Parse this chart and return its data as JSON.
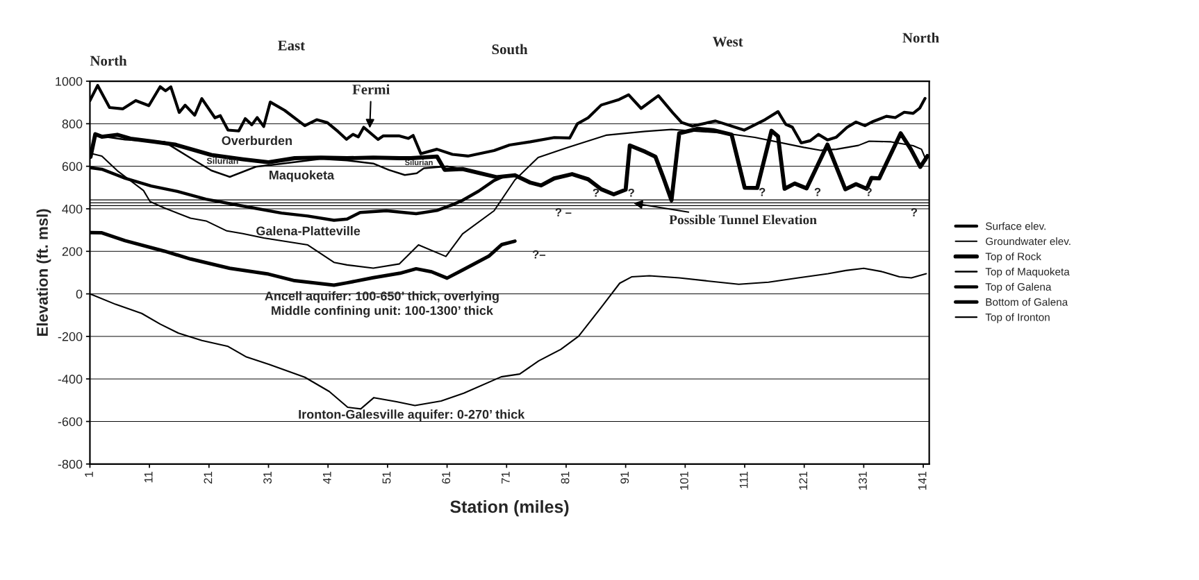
{
  "chart_data": {
    "type": "line",
    "xlabel": "Station (miles)",
    "ylabel": "Elevation (ft. msl)",
    "xlim": [
      1,
      142
    ],
    "xticks": [
      1,
      11,
      21,
      31,
      41,
      51,
      61,
      71,
      81,
      91,
      101,
      111,
      121,
      131,
      141
    ],
    "ylim": [
      -800,
      1000
    ],
    "yticks": [
      -800,
      -600,
      -400,
      -200,
      0,
      200,
      400,
      600,
      800,
      1000
    ],
    "grid": "y",
    "legend": "right",
    "line_style": "solid",
    "marker": "none",
    "series": [
      {
        "name": "Surface elev.",
        "color": "#000000",
        "x": [
          1,
          2.3,
          4.3,
          6.5,
          8.7,
          10.9,
          12.8,
          13.7,
          14.6,
          16,
          17,
          18.6,
          19.8,
          22,
          22.9,
          24.2,
          26,
          27.1,
          28.2,
          29.1,
          30.2,
          31.3,
          33.7,
          37.1,
          39.1,
          40.9,
          42.7,
          44.1,
          45.2,
          46.1,
          47,
          49.4,
          50.3,
          52.9,
          54.5,
          55.3,
          56.6,
          59.3,
          61.9,
          64.5,
          68.9,
          71.5,
          75,
          79,
          81.6,
          82.9,
          84.7,
          86.9,
          89.9,
          91.5,
          93.6,
          96.5,
          98.9,
          100.4,
          102.2,
          106.1,
          110.9,
          114.4,
          116.6,
          117.9,
          119,
          120.5,
          122,
          123.4,
          124.9,
          126.4,
          128.2,
          129.7,
          131.2,
          132.6,
          134.8,
          136.3,
          137.8,
          139.3,
          140.4,
          141.3
        ],
        "values": [
          909,
          980,
          876,
          870,
          909,
          885,
          974,
          955,
          973,
          853,
          887,
          840,
          918,
          828,
          838,
          770,
          766,
          824,
          795,
          829,
          787,
          902,
          863,
          791,
          819,
          805,
          763,
          727,
          750,
          738,
          783,
          726,
          743,
          743,
          731,
          745,
          659,
          680,
          656,
          648,
          674,
          700,
          715,
          735,
          733,
          800,
          828,
          888,
          914,
          936,
          872,
          932,
          852,
          806,
          789,
          813,
          770,
          819,
          857,
          797,
          784,
          710,
          720,
          750,
          724,
          737,
          783,
          808,
          791,
          811,
          835,
          829,
          854,
          849,
          873,
          919
        ]
      },
      {
        "name": "Groundwater elev.",
        "color": "#000000",
        "x": [
          1.1,
          3,
          5.6,
          10,
          11.1,
          13.5,
          17.9,
          20.5,
          24,
          26.7,
          30.2,
          37.6,
          42,
          44.2,
          48.6,
          53,
          56.2,
          60.8,
          63.6,
          68.9,
          72.4,
          76.3,
          81.2,
          87.7,
          94.3,
          98.7,
          107.4,
          112.7,
          120.9,
          123.8,
          126.4,
          130.1,
          131.9,
          135.6,
          139.3,
          140.7,
          141.5
        ],
        "values": [
          661,
          648,
          579,
          486,
          434,
          404,
          356,
          343,
          296,
          283,
          263,
          230,
          148,
          136,
          121,
          141,
          230,
          176,
          282,
          391,
          536,
          641,
          688,
          746,
          764,
          773,
          756,
          736,
          689,
          675,
          680,
          698,
          718,
          715,
          697,
          680,
          627
        ]
      },
      {
        "name": "Top of Rock",
        "color": "#000000",
        "x": [
          1.1,
          1.9,
          3,
          5.6,
          7.8,
          11.7,
          15.3,
          21.4,
          26.7,
          31,
          35.4,
          39.8,
          44.2,
          48.6,
          53,
          54.9,
          59.3,
          60.6,
          63.6,
          69.3,
          72.4,
          75,
          76.8,
          79,
          82,
          84.7,
          86.9,
          89,
          91,
          91.7,
          94.3,
          96,
          97.4,
          98.7,
          100,
          103.1,
          105.7,
          108.8,
          111,
          113.1,
          115.5,
          116.6,
          117.7,
          119.4,
          121.4,
          124.9,
          127.9,
          129.7,
          131.5,
          132.3,
          133.6,
          137.2,
          138.9,
          140.5,
          141.7
        ],
        "values": [
          644,
          751,
          739,
          748,
          730,
          716,
          702,
          653,
          633,
          619,
          638,
          641,
          638,
          641,
          638,
          638,
          646,
          583,
          587,
          549,
          558,
          523,
          510,
          543,
          563,
          539,
          492,
          468,
          490,
          698,
          668,
          645,
          542,
          440,
          755,
          776,
          770,
          749,
          499,
          498,
          767,
          741,
          494,
          519,
          496,
          702,
          492,
          516,
          494,
          545,
          543,
          755,
          681,
          597,
          648
        ]
      },
      {
        "name": "Top of Maquoketa",
        "color": "#000000",
        "x": [
          2.1,
          6.9,
          13.5,
          17.9,
          21.4,
          24.5,
          28.9,
          33.2,
          39.8,
          44.2,
          48.6,
          51.2,
          53.9,
          55.9,
          57.1,
          61,
          63.6,
          69.8
        ],
        "values": [
          745,
          725,
          715,
          639,
          580,
          550,
          598,
          612,
          635,
          627,
          613,
          583,
          559,
          567,
          591,
          600,
          587,
          543
        ]
      },
      {
        "name": "Top of Galena",
        "color": "#000000",
        "x": [
          1.1,
          3,
          6.9,
          11.3,
          15.7,
          20.5,
          26.7,
          33.2,
          37.6,
          42,
          44.2,
          46.4,
          50.8,
          55.8,
          59.3,
          61.9,
          63.6,
          66.3,
          68.9,
          70.2
        ],
        "values": [
          593,
          586,
          544,
          507,
          482,
          445,
          413,
          380,
          366,
          346,
          352,
          383,
          391,
          377,
          392,
          419,
          440,
          483,
          533,
          549
        ]
      },
      {
        "name": "Bottom of Galena",
        "color": "#000000",
        "x": [
          1.1,
          3,
          6.9,
          13.5,
          17.9,
          24.5,
          31,
          35.4,
          42,
          44.2,
          48.6,
          53.1,
          55.8,
          58.4,
          61,
          63.6,
          68,
          70.2,
          72.4
        ],
        "values": [
          288,
          287,
          250,
          201,
          164,
          120,
          93,
          62,
          41,
          52,
          76,
          97,
          118,
          104,
          74,
          112,
          177,
          232,
          248
        ]
      },
      {
        "name": "Top of Ironton",
        "color": "#000000",
        "x": [
          1,
          5.3,
          9.7,
          12.8,
          15.9,
          19.8,
          24.2,
          27.3,
          31.1,
          37.1,
          41.2,
          44.3,
          46.5,
          48.7,
          52.5,
          55.6,
          60,
          63.8,
          70.1,
          73.2,
          76.4,
          80.1,
          83.1,
          87,
          90,
          92,
          95,
          100,
          105,
          110,
          115,
          120,
          125,
          128,
          131,
          134,
          137,
          139,
          141.5
        ],
        "values": [
          0,
          -49,
          -92,
          -142,
          -185,
          -219,
          -247,
          -297,
          -332,
          -392,
          -459,
          -533,
          -541,
          -488,
          -507,
          -525,
          -504,
          -467,
          -390,
          -377,
          -315,
          -261,
          -199,
          -60,
          50,
          80,
          85,
          75,
          60,
          45,
          55,
          75,
          95,
          110,
          120,
          105,
          80,
          75,
          95
        ]
      }
    ],
    "ref_lines": [
      {
        "axis": "y",
        "value": 415,
        "color": "#000000"
      },
      {
        "axis": "y",
        "value": 428,
        "color": "#000000"
      },
      {
        "axis": "y",
        "value": 442,
        "color": "#000000"
      }
    ],
    "annotations": [
      "North",
      "East",
      "South",
      "West",
      "North",
      {
        "text": "Fermi",
        "x": 48,
        "y": 770
      },
      {
        "text": "Possible Tunnel Elevation",
        "x": 92,
        "y": 428
      },
      "Overburden",
      "Silurian",
      "Silurian",
      "Maquoketa",
      "Galena-Platteville",
      "Ancell aquifer: 100-650’ thick, overlying",
      "Middle confining unit: 100-1300’ thick",
      "Ironton-Galesville aquifer: 0-270’ thick",
      "?–",
      "? –",
      "?",
      "?",
      "?",
      "?",
      "?",
      "?"
    ]
  }
}
